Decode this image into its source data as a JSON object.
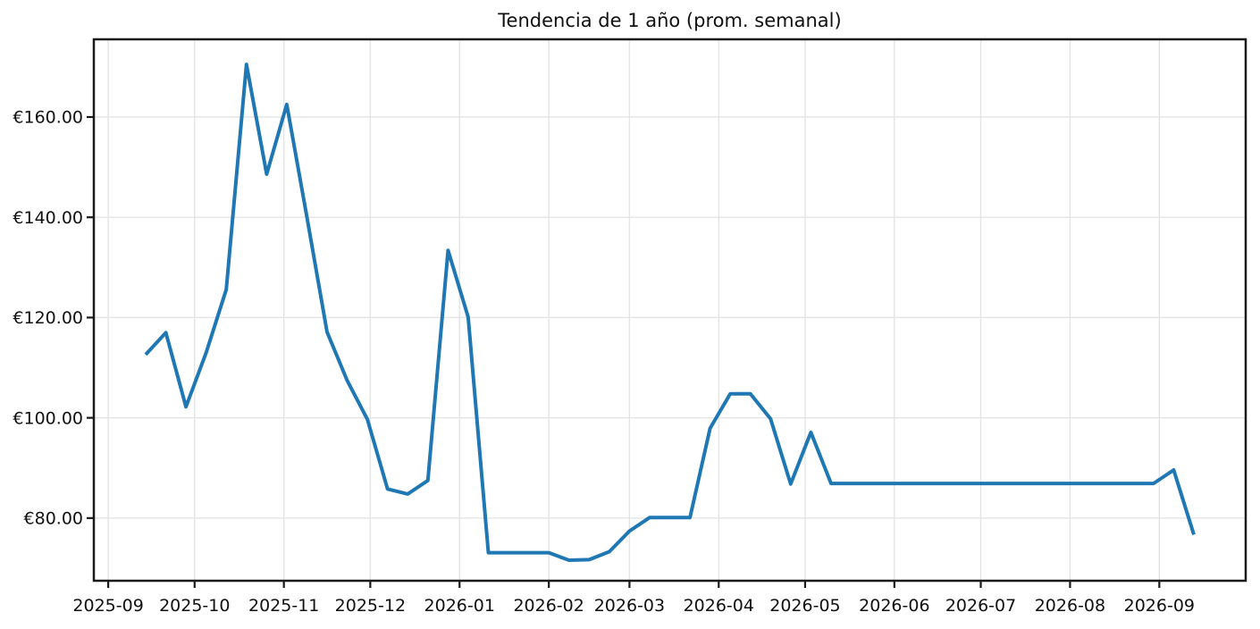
{
  "chart_data": {
    "type": "line",
    "title": "Tendencia de 1 año (prom. semanal)",
    "currency": "EUR",
    "line_color": "#1f77b4",
    "grid_color": "#e4e4e4",
    "spine_color": "#1a1a1a",
    "text_color": "#111111",
    "grid": true,
    "legend_position": "none",
    "xlim": [
      "2025-08-27",
      "2026-10-01"
    ],
    "ylim": [
      67.5,
      175.5
    ],
    "y_ticks": [
      {
        "value": 80,
        "label": "€80.00"
      },
      {
        "value": 100,
        "label": "€100.00"
      },
      {
        "value": 120,
        "label": "€120.00"
      },
      {
        "value": 140,
        "label": "€140.00"
      },
      {
        "value": 160,
        "label": "€160.00"
      }
    ],
    "x_ticks": [
      {
        "date": "2025-09-01",
        "label": "2025-09"
      },
      {
        "date": "2025-10-01",
        "label": "2025-10"
      },
      {
        "date": "2025-11-01",
        "label": "2025-11"
      },
      {
        "date": "2025-12-01",
        "label": "2025-12"
      },
      {
        "date": "2026-01-01",
        "label": "2026-01"
      },
      {
        "date": "2026-02-01",
        "label": "2026-02"
      },
      {
        "date": "2026-03-01",
        "label": "2026-03"
      },
      {
        "date": "2026-04-01",
        "label": "2026-04"
      },
      {
        "date": "2026-05-01",
        "label": "2026-05"
      },
      {
        "date": "2026-06-01",
        "label": "2026-06"
      },
      {
        "date": "2026-07-01",
        "label": "2026-07"
      },
      {
        "date": "2026-08-01",
        "label": "2026-08"
      },
      {
        "date": "2026-09-01",
        "label": "2026-09"
      }
    ],
    "series": [
      {
        "name": "prom. semanal",
        "dates": [
          "2025-09-14",
          "2025-09-21",
          "2025-09-28",
          "2025-10-05",
          "2025-10-12",
          "2025-10-19",
          "2025-10-26",
          "2025-11-02",
          "2025-11-09",
          "2025-11-16",
          "2025-11-23",
          "2025-11-30",
          "2025-12-07",
          "2025-12-14",
          "2025-12-21",
          "2025-12-28",
          "2026-01-04",
          "2026-01-11",
          "2026-01-18",
          "2026-01-25",
          "2026-02-01",
          "2026-02-08",
          "2026-02-15",
          "2026-02-22",
          "2026-03-01",
          "2026-03-08",
          "2026-03-15",
          "2026-03-22",
          "2026-03-29",
          "2026-04-05",
          "2026-04-12",
          "2026-04-19",
          "2026-04-26",
          "2026-05-03",
          "2026-05-10",
          "2026-05-17",
          "2026-05-24",
          "2026-05-31",
          "2026-06-07",
          "2026-06-14",
          "2026-06-21",
          "2026-06-28",
          "2026-07-05",
          "2026-07-12",
          "2026-07-19",
          "2026-07-26",
          "2026-08-02",
          "2026-08-09",
          "2026-08-16",
          "2026-08-23",
          "2026-08-30",
          "2026-09-06",
          "2026-09-13"
        ],
        "values": [
          112.6,
          117.0,
          102.2,
          113.0,
          125.6,
          170.5,
          148.6,
          162.5,
          140.0,
          117.1,
          107.4,
          99.7,
          85.8,
          84.8,
          87.5,
          133.4,
          120.1,
          73.1,
          73.1,
          73.1,
          73.1,
          71.6,
          71.7,
          73.3,
          77.4,
          80.1,
          80.1,
          80.1,
          97.9,
          104.8,
          104.8,
          99.8,
          86.8,
          97.1,
          86.9,
          86.9,
          86.9,
          86.9,
          86.9,
          86.9,
          86.9,
          86.9,
          86.9,
          86.9,
          86.9,
          86.9,
          86.9,
          86.9,
          86.9,
          86.9,
          86.9,
          89.6,
          76.7
        ]
      }
    ]
  }
}
